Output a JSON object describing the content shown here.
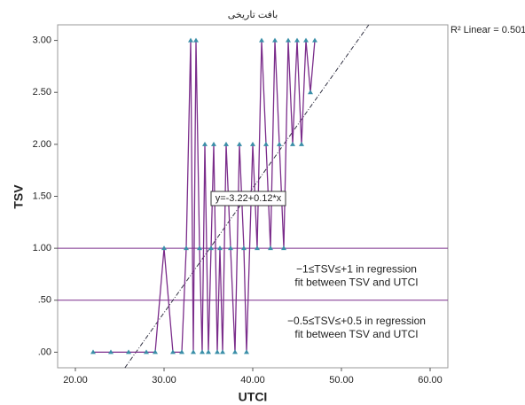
{
  "chart_data": {
    "type": "scatter",
    "title": "بافت تاريخی",
    "x_label": "UTCI",
    "y_label": "TSV",
    "xlim": [
      18,
      62
    ],
    "ylim": [
      -0.15,
      3.15
    ],
    "xticks": [
      {
        "value": 20,
        "label": "20.00"
      },
      {
        "value": 30,
        "label": "30.00"
      },
      {
        "value": 40,
        "label": "40.00"
      },
      {
        "value": 50,
        "label": "50.00"
      },
      {
        "value": 60,
        "label": "60.00"
      }
    ],
    "yticks": [
      {
        "value": 0,
        "label": ".00"
      },
      {
        "value": 0.5,
        "label": ".50"
      },
      {
        "value": 1,
        "label": "1.00"
      },
      {
        "value": 1.5,
        "label": "1.50"
      },
      {
        "value": 2,
        "label": "2.00"
      },
      {
        "value": 2.5,
        "label": "2.50"
      },
      {
        "value": 3,
        "label": "3.00"
      }
    ],
    "series": [
      {
        "color": "#7b2d8b",
        "marker_color": "#3a8fa8",
        "x": [
          22,
          24,
          26,
          28,
          29,
          30,
          31,
          32,
          32.5,
          33,
          33.3,
          33.6,
          34,
          34.3,
          34.6,
          35,
          35.3,
          35.6,
          36,
          36.3,
          36.6,
          37,
          37.5,
          38,
          38.5,
          39,
          39.3,
          40,
          40.5,
          41,
          41.5,
          42,
          42.5,
          43,
          43.5,
          44,
          44.5,
          45,
          45.5,
          46,
          46.5,
          47
        ],
        "values": [
          0,
          0,
          0,
          0,
          0,
          1,
          0,
          0,
          1,
          3,
          0,
          3,
          1,
          0,
          2,
          0,
          1,
          2,
          0,
          1,
          0,
          2,
          1,
          0,
          2,
          1,
          0,
          2,
          1,
          3,
          2,
          1,
          3,
          2,
          1,
          3,
          2,
          3,
          2,
          3,
          2.5,
          3
        ]
      }
    ],
    "fit_label": "y=-3.22+0.12*x",
    "fit_intercept": -3.22,
    "fit_slope": 0.12,
    "r2_label": "R² Linear = 0.501",
    "reference_lines": [
      {
        "value": 1,
        "label": [
          "−1≤TSV≤+1 in regression",
          "fit between TSV and UTCI"
        ]
      },
      {
        "value": 0.5,
        "label": [
          "−0.5≤TSV≤+0.5 in regression",
          "fit between TSV and UTCI"
        ]
      }
    ]
  }
}
